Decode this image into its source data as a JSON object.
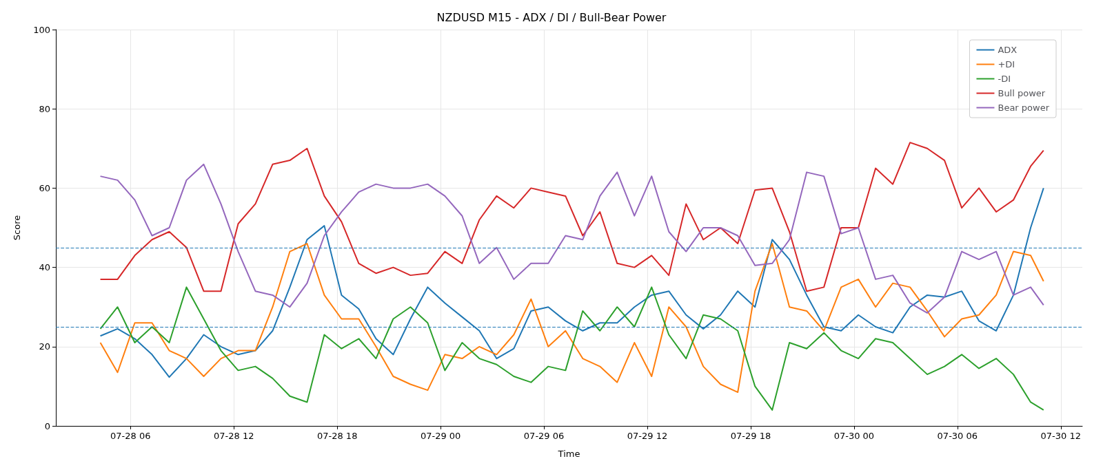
{
  "chart_data": {
    "type": "line",
    "title": "NZDUSD M15 - ADX / DI / Bull-Bear Power",
    "xlabel": "Time",
    "ylabel": "Score",
    "x": [
      "--07-28T04:15",
      "--07-28T05:15",
      "--07-28T06:15",
      "--07-28T07:15",
      "--07-28T08:15",
      "--07-28T09:15",
      "--07-28T10:15",
      "--07-28T11:15",
      "--07-28T12:15",
      "--07-28T13:15",
      "--07-28T14:15",
      "--07-28T15:15",
      "--07-28T16:15",
      "--07-28T17:15",
      "--07-28T18:15",
      "--07-28T19:15",
      "--07-28T20:15",
      "--07-28T21:15",
      "--07-28T22:15",
      "--07-28T23:15",
      "--07-29T00:15",
      "--07-29T01:15",
      "--07-29T02:15",
      "--07-29T03:15",
      "--07-29T04:15",
      "--07-29T05:15",
      "--07-29T06:15",
      "--07-29T07:15",
      "--07-29T08:15",
      "--07-29T09:15",
      "--07-29T10:15",
      "--07-29T11:15",
      "--07-29T12:15",
      "--07-29T13:15",
      "--07-29T14:15",
      "--07-29T15:15",
      "--07-29T16:15",
      "--07-29T17:15",
      "--07-29T18:15",
      "--07-29T19:15",
      "--07-29T20:15",
      "--07-29T21:15",
      "--07-29T22:15",
      "--07-29T23:15",
      "--07-30T00:15",
      "--07-30T01:15",
      "--07-30T02:15",
      "--07-30T03:15",
      "--07-30T04:15",
      "--07-30T05:15",
      "--07-30T06:15",
      "--07-30T07:15",
      "--07-30T08:15",
      "--07-30T09:15",
      "--07-30T10:15",
      "--07-30T11:00"
    ],
    "series": [
      {
        "name": "ADX",
        "color": "#1f77b4",
        "values": [
          22.7,
          24.5,
          22,
          18,
          12.3,
          17,
          23,
          20,
          18,
          19,
          24,
          35,
          47,
          50.5,
          33,
          29.5,
          22,
          18,
          27,
          35,
          31,
          27.5,
          24,
          17,
          19.5,
          29,
          30,
          26.5,
          24,
          26,
          26,
          30,
          33,
          34,
          28,
          24.5,
          28,
          34,
          30,
          47,
          42,
          33,
          25,
          24,
          28,
          25,
          23.5,
          30,
          33,
          32.5,
          34,
          26.5,
          24,
          33,
          50,
          60
        ]
      },
      {
        "name": "+DI",
        "color": "#ff7f0e",
        "values": [
          21,
          13.5,
          26,
          26,
          19,
          17,
          12.5,
          17,
          19,
          19,
          30,
          44,
          46,
          33,
          27,
          27,
          20,
          12.5,
          10.5,
          9,
          18,
          17,
          20,
          18,
          23,
          32,
          20,
          24,
          17,
          15,
          11,
          21,
          12.5,
          30,
          25,
          15,
          10.5,
          8.5,
          34,
          46,
          30,
          29,
          24,
          35,
          37,
          30,
          36,
          35,
          29,
          22.5,
          27,
          28,
          33,
          44,
          43,
          36.5
        ]
      },
      {
        "name": "-DI",
        "color": "#2ca02c",
        "values": [
          24.5,
          30,
          21,
          25,
          21,
          35,
          27,
          19,
          14,
          15,
          12,
          7.5,
          6,
          23,
          19.5,
          22,
          17,
          27,
          30,
          26,
          14,
          21,
          17,
          15.5,
          12.5,
          11,
          15,
          14,
          29,
          24,
          30,
          25,
          35,
          23,
          17,
          28,
          27,
          24,
          10,
          4,
          21,
          19.5,
          23.5,
          19,
          17,
          22,
          21,
          17,
          13,
          15,
          18,
          14.5,
          17,
          13,
          6,
          4
        ]
      },
      {
        "name": "Bull power",
        "color": "#d62728",
        "values": [
          37,
          37,
          43,
          47,
          49,
          45,
          34,
          34,
          51,
          56,
          66,
          67,
          70,
          58,
          51.5,
          41,
          38.5,
          40,
          38,
          38.5,
          44,
          41,
          52,
          58,
          55,
          60,
          59,
          58,
          48,
          54,
          41,
          40,
          43,
          38,
          56,
          47,
          50,
          46,
          59.5,
          60,
          49,
          34,
          35,
          50,
          50,
          65,
          61,
          71.5,
          70,
          67,
          55,
          60,
          54,
          57,
          65.5,
          69.5
        ]
      },
      {
        "name": "Bear power",
        "color": "#9467bd",
        "values": [
          63,
          62,
          57,
          48,
          50,
          62,
          66,
          56,
          44,
          34,
          33,
          30,
          36,
          48,
          54,
          59,
          61,
          60,
          60,
          61,
          58,
          53,
          41,
          45,
          37,
          41,
          41,
          48,
          47,
          58,
          64,
          53,
          63,
          49,
          44,
          50,
          50,
          48,
          40.5,
          41,
          47,
          64,
          63,
          48.5,
          50,
          37,
          38,
          31,
          28.5,
          32.5,
          44,
          42,
          44,
          33,
          35,
          30.5
        ]
      }
    ],
    "xlim": [
      "--07-28T01:40",
      "--07-30T13:15"
    ],
    "xticks": [
      {
        "value": "--07-28T06:00",
        "label": "07-28 06"
      },
      {
        "value": "--07-28T12:00",
        "label": "07-28 12"
      },
      {
        "value": "--07-28T18:00",
        "label": "07-28 18"
      },
      {
        "value": "--07-29T00:00",
        "label": "07-29 00"
      },
      {
        "value": "--07-29T06:00",
        "label": "07-29 06"
      },
      {
        "value": "--07-29T12:00",
        "label": "07-29 12"
      },
      {
        "value": "--07-29T18:00",
        "label": "07-29 18"
      },
      {
        "value": "--07-30T00:00",
        "label": "07-30 00"
      },
      {
        "value": "--07-30T06:00",
        "label": "07-30 06"
      },
      {
        "value": "--07-30T12:00",
        "label": "07-30 12"
      }
    ],
    "ylim": [
      0,
      100
    ],
    "yticks": [
      0,
      20,
      40,
      60,
      80,
      100
    ],
    "ref_lines": [
      {
        "axis": "y",
        "value": 45,
        "color": "#1f77b4",
        "line_style": "dashed"
      },
      {
        "axis": "y",
        "value": 25,
        "color": "#1f77b4",
        "line_style": "dashed"
      }
    ],
    "grid": true,
    "legend": "top right",
    "marker": "none"
  }
}
